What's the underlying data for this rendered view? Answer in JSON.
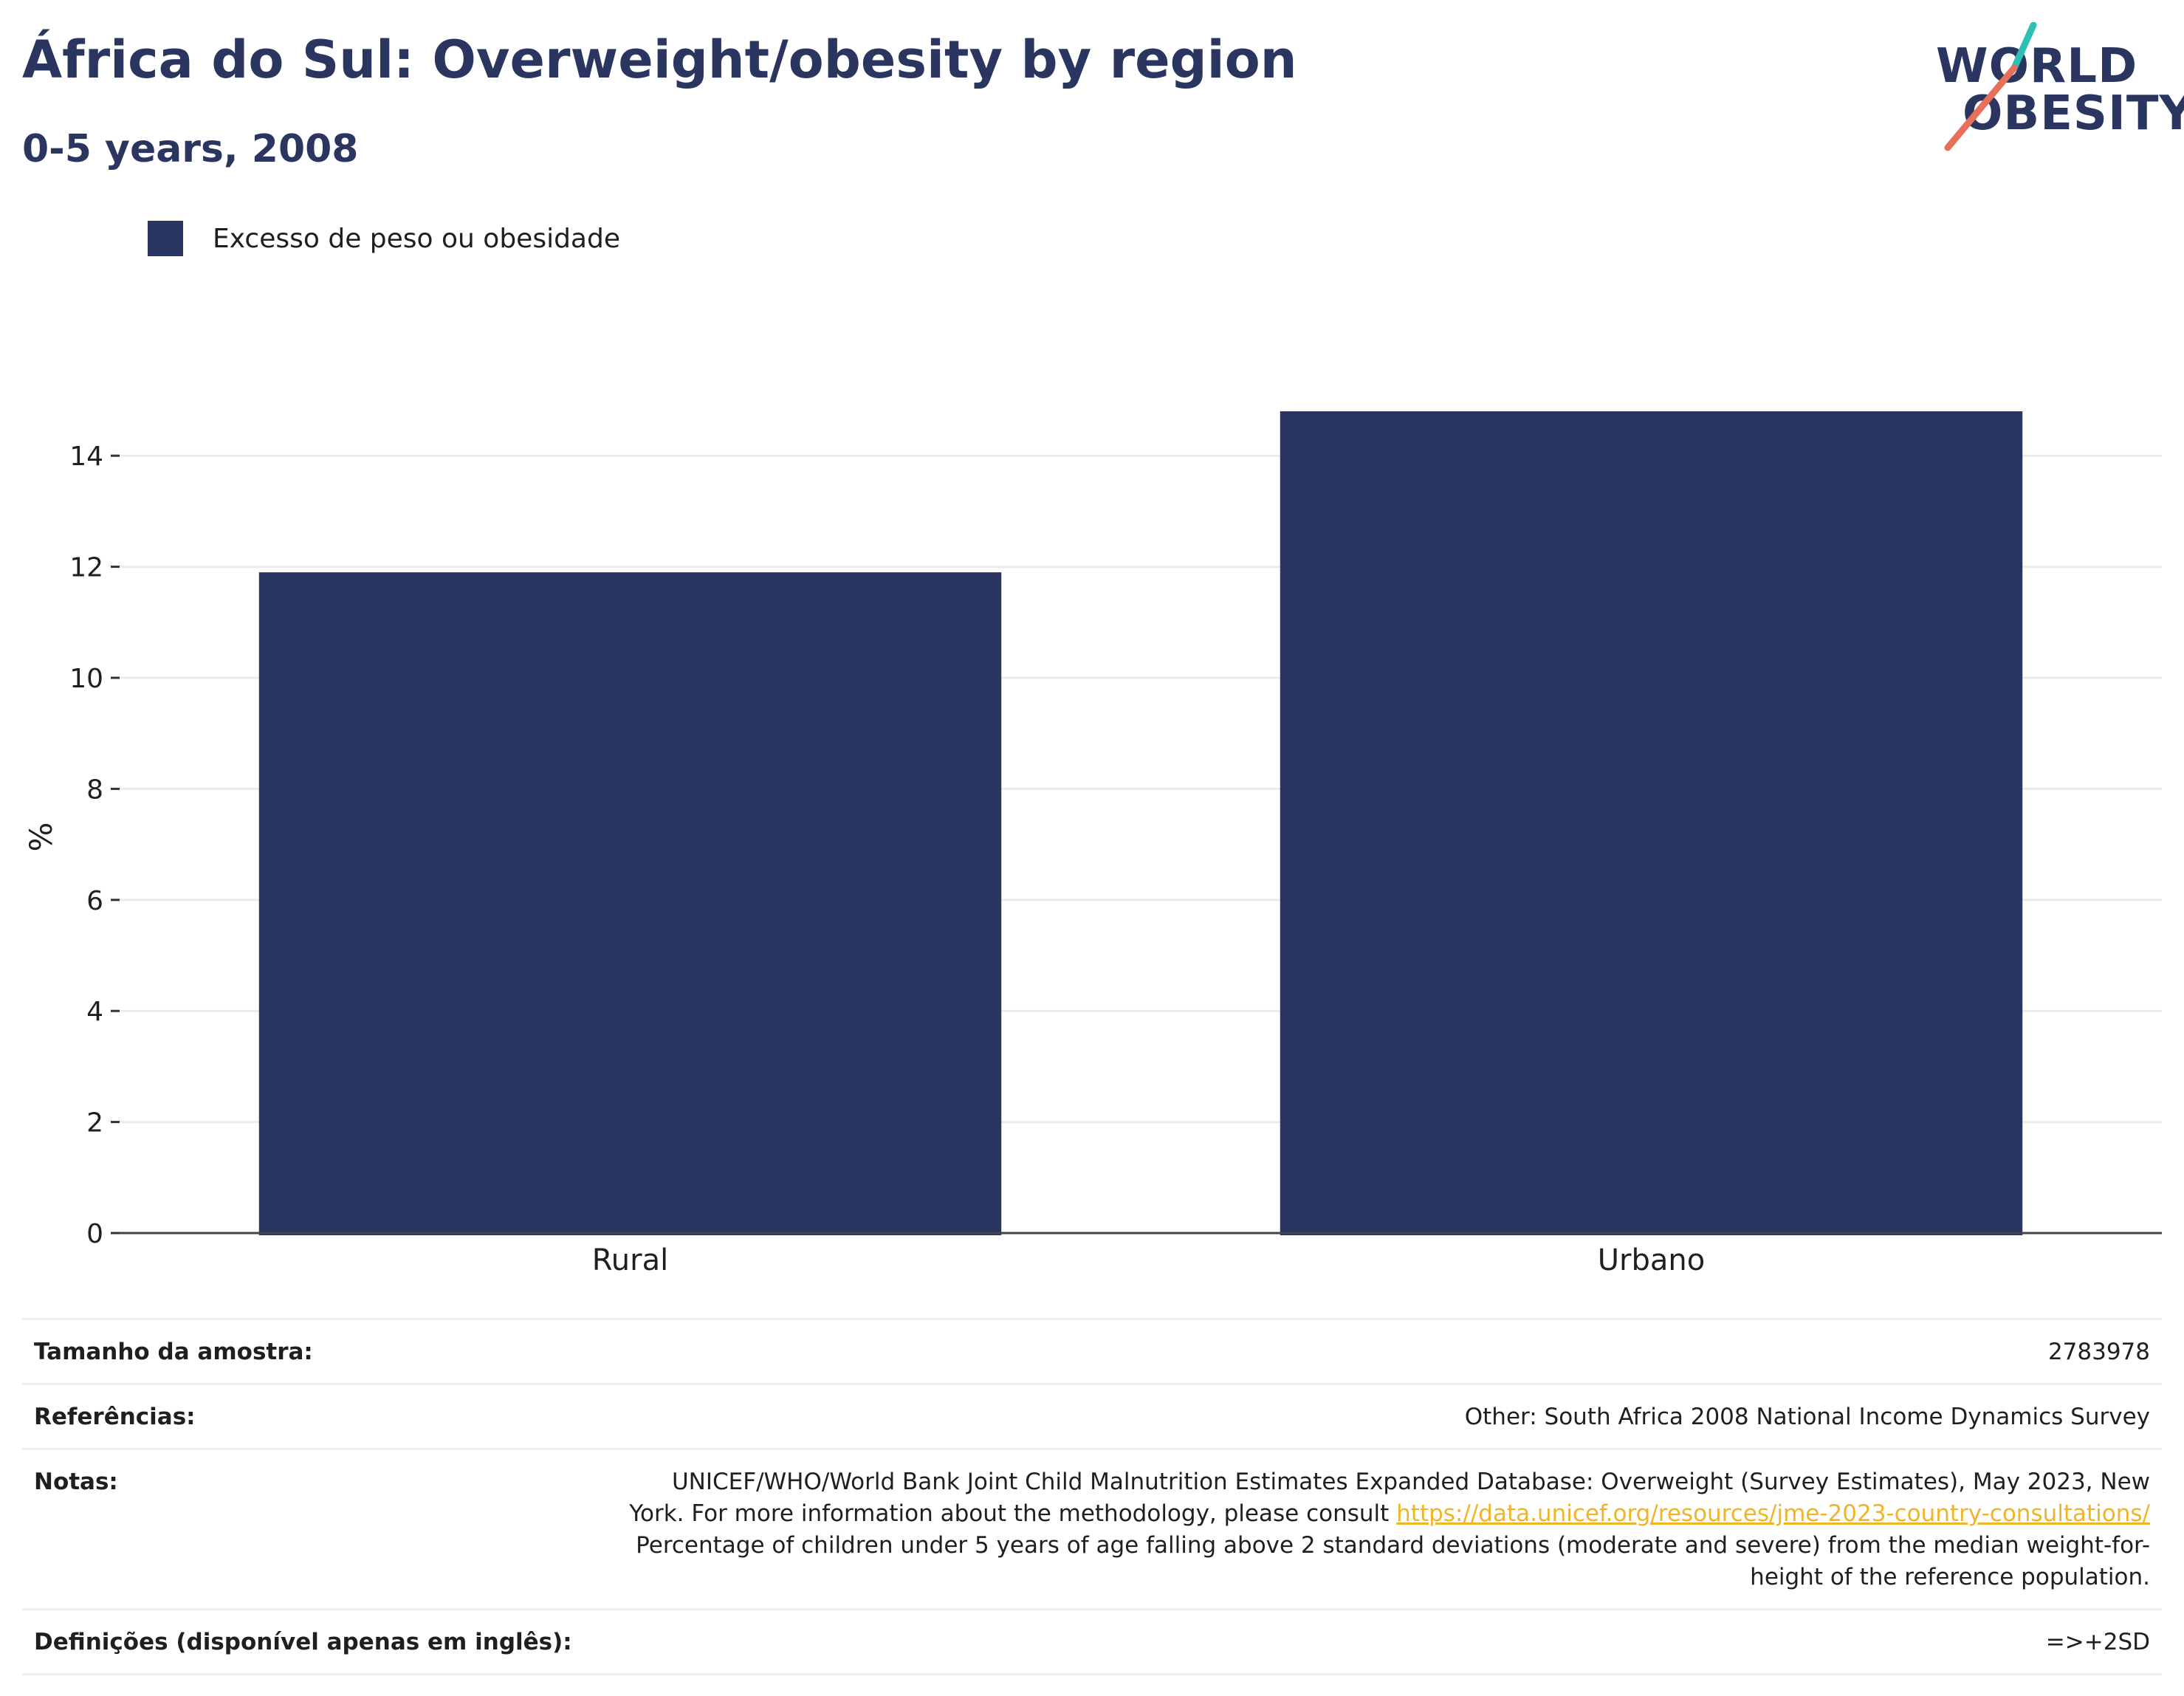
{
  "header": {
    "title": "África do Sul: Overweight/obesity by region",
    "subtitle": "0-5 years, 2008"
  },
  "logo": {
    "line1": "WORLD",
    "line2": "OBESITY",
    "colors": {
      "text": "#2a3560",
      "slash_top": "#2ebfb5",
      "slash_bottom": "#e8705a"
    }
  },
  "chart_data": {
    "type": "bar",
    "title": "África do Sul: Overweight/obesity by region",
    "subtitle": "0-5 years, 2008",
    "categories": [
      "Rural",
      "Urbano"
    ],
    "series": [
      {
        "name": "Excesso de peso ou obesidade",
        "values": [
          11.9,
          14.8
        ],
        "color": "#2a3661"
      }
    ],
    "xlabel": "",
    "ylabel": "%",
    "ylim": [
      0,
      15.5
    ],
    "yticks": [
      0,
      2,
      4,
      6,
      8,
      10,
      12,
      14
    ],
    "grid": true,
    "legend_position": "top-left"
  },
  "info": {
    "sample_size_label": "Tamanho da amostra:",
    "sample_size_value": "2783978",
    "references_label": "Referências:",
    "references_value": "Other: South Africa 2008 National Income Dynamics Survey",
    "notes_label": "Notas:",
    "notes_text_1": "UNICEF/WHO/World Bank Joint Child Malnutrition Estimates Expanded Database: Overweight (Survey Estimates), May 2023, New York. For more information about the methodology, please consult ",
    "notes_link": "https://data.unicef.org/resources/jme-2023-country-consultations/",
    "notes_text_2": " Percentage of children under 5 years of age falling above 2 standard deviations (moderate and severe) from the median weight-for-height of the reference population.",
    "definitions_label": "Definições (disponível apenas em inglês):",
    "definitions_value": "=>+2SD"
  }
}
